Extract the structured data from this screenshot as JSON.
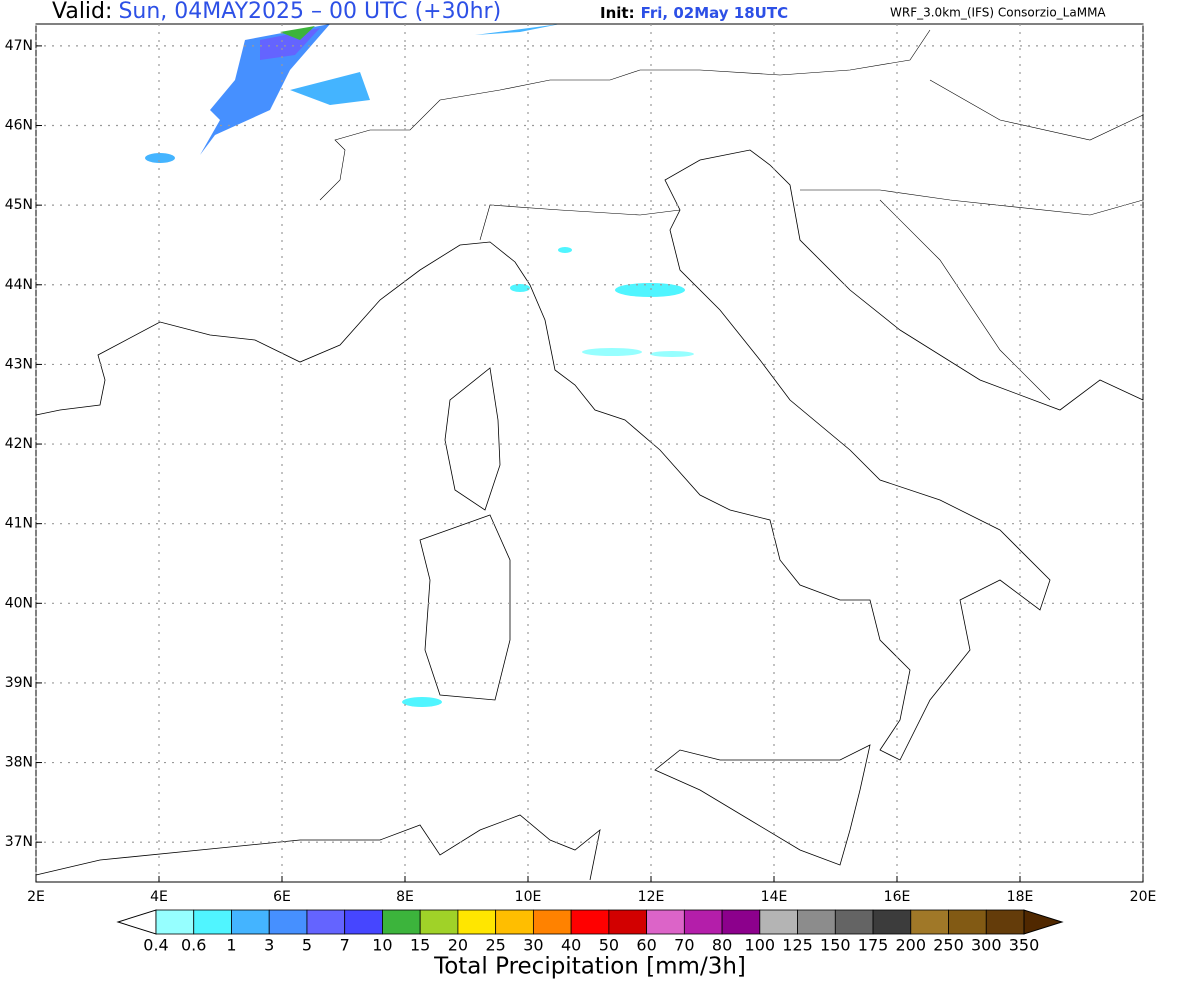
{
  "header": {
    "valid_label": "Valid:",
    "valid_time": "Sun, 04MAY2025 – 00 UTC (+30hr)",
    "init_label": "Init:",
    "init_time": "Fri, 02May 18UTC",
    "model": "WRF_3.0km_(IFS)  Consorzio_LaMMA"
  },
  "map": {
    "xlim": [
      2,
      20
    ],
    "ylim": [
      36.5,
      47.275
    ],
    "xticks": [
      {
        "value": 2,
        "label": "2E"
      },
      {
        "value": 4,
        "label": "4E"
      },
      {
        "value": 6,
        "label": "6E"
      },
      {
        "value": 8,
        "label": "8E"
      },
      {
        "value": 10,
        "label": "10E"
      },
      {
        "value": 12,
        "label": "12E"
      },
      {
        "value": 14,
        "label": "14E"
      },
      {
        "value": 16,
        "label": "16E"
      },
      {
        "value": 18,
        "label": "18E"
      },
      {
        "value": 20,
        "label": "20E"
      }
    ],
    "yticks": [
      {
        "value": 37,
        "label": "37N"
      },
      {
        "value": 38,
        "label": "38N"
      },
      {
        "value": 39,
        "label": "39N"
      },
      {
        "value": 40,
        "label": "40N"
      },
      {
        "value": 41,
        "label": "41N"
      },
      {
        "value": 42,
        "label": "42N"
      },
      {
        "value": 43,
        "label": "43N"
      },
      {
        "value": 44,
        "label": "44N"
      },
      {
        "value": 45,
        "label": "45N"
      },
      {
        "value": 46,
        "label": "46N"
      },
      {
        "value": 47,
        "label": "47N"
      }
    ],
    "grid": true
  },
  "colorbar": {
    "title": "Total Precipitation [mm/3h]",
    "levels": [
      0.4,
      0.6,
      1,
      3,
      5,
      7,
      10,
      15,
      20,
      25,
      30,
      40,
      50,
      60,
      70,
      80,
      100,
      125,
      150,
      175,
      200,
      250,
      300,
      350
    ],
    "colors": [
      "#ffffff",
      "#96ffff",
      "#50f5ff",
      "#44b4ff",
      "#4690ff",
      "#6464ff",
      "#4646ff",
      "#3cb43c",
      "#a0d228",
      "#ffe600",
      "#ffbe00",
      "#ff8200",
      "#ff0000",
      "#d20000",
      "#dc64c8",
      "#b41eaa",
      "#8c008c",
      "#b4b4b4",
      "#8c8c8c",
      "#646464",
      "#3c3c3c",
      "#a07828",
      "#825a14",
      "#643c0a",
      "#502800"
    ]
  }
}
